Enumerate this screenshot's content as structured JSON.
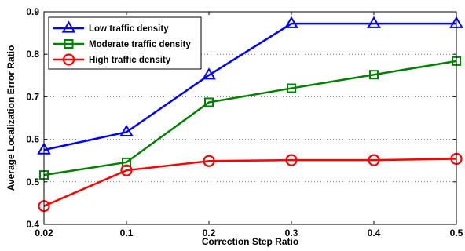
{
  "chart_data": {
    "type": "line",
    "title": "",
    "xlabel": "Correction Step Ratio",
    "ylabel": "Average Localization Error Ratio",
    "categories": [
      "0.02",
      "0.1",
      "0.2",
      "0.3",
      "0.4",
      "0.5"
    ],
    "ylim": [
      0.4,
      0.9
    ],
    "yticks": [
      "0.4",
      "0.5",
      "0.6",
      "0.7",
      "0.8",
      "0.9"
    ],
    "grid": "horizontal-dotted",
    "legend_position": "top-left",
    "series": [
      {
        "name": "Low traffic density",
        "values": [
          0.575,
          0.617,
          0.751,
          0.872,
          0.872,
          0.872
        ],
        "color": "#0000ff",
        "marker": "triangle"
      },
      {
        "name": "Moderate traffic density",
        "values": [
          0.516,
          0.546,
          0.687,
          0.72,
          0.752,
          0.784
        ],
        "color": "#008000",
        "marker": "square"
      },
      {
        "name": "High traffic density",
        "values": [
          0.443,
          0.527,
          0.549,
          0.551,
          0.551,
          0.554
        ],
        "color": "#ff0000",
        "marker": "circle"
      }
    ]
  }
}
